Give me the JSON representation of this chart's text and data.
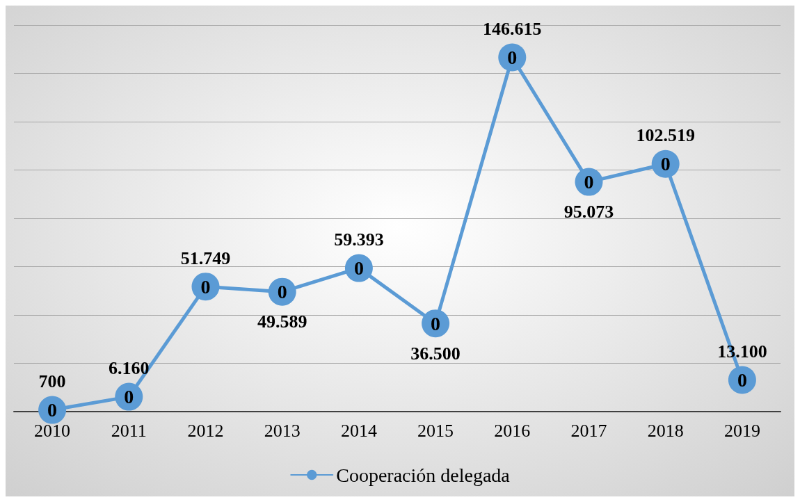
{
  "chart_data": {
    "type": "line",
    "categories": [
      "2010",
      "2011",
      "2012",
      "2013",
      "2014",
      "2015",
      "2016",
      "2017",
      "2018",
      "2019"
    ],
    "series": [
      {
        "name": "Cooperación delegada",
        "color": "#5b9bd5",
        "values": [
          700,
          6160,
          51749,
          49589,
          59393,
          36500,
          146615,
          95073,
          102519,
          13100
        ],
        "value_labels": [
          "700",
          "6.160",
          "51.749",
          "49.589",
          "59.393",
          "36.500",
          "146.615",
          "95.073",
          "102.519",
          "13.100"
        ]
      }
    ],
    "ylim": [
      0,
      160000
    ],
    "yticks": [
      {
        "value": 0,
        "label": null
      },
      {
        "value": 20000,
        "label": null
      },
      {
        "value": 40000,
        "label": null
      },
      {
        "value": 60000,
        "label": null
      },
      {
        "value": 80000,
        "label": null
      },
      {
        "value": 100000,
        "label": null
      },
      {
        "value": 120000,
        "label": null
      },
      {
        "value": 140000,
        "label": null
      },
      {
        "value": 160000,
        "label": null
      }
    ],
    "grid": "y",
    "legend": "bottom",
    "marker": "circle",
    "line_style": "solid",
    "tick_labels": "x",
    "annotations": [
      {
        "text": "0",
        "x": "2010",
        "y": 700
      },
      {
        "text": "0",
        "x": "2011",
        "y": 6160
      },
      {
        "text": "0",
        "x": "2012",
        "y": 51749
      },
      {
        "text": "0",
        "x": "2013",
        "y": 49589
      },
      {
        "text": "0",
        "x": "2014",
        "y": 59393
      },
      {
        "text": "0",
        "x": "2015",
        "y": 36500
      },
      {
        "text": "0",
        "x": "2016",
        "y": 146615
      },
      {
        "text": "0",
        "x": "2017",
        "y": 95073
      },
      {
        "text": "0",
        "x": "2018",
        "y": 102519
      },
      {
        "text": "0",
        "x": "2019",
        "y": 13100
      }
    ]
  }
}
